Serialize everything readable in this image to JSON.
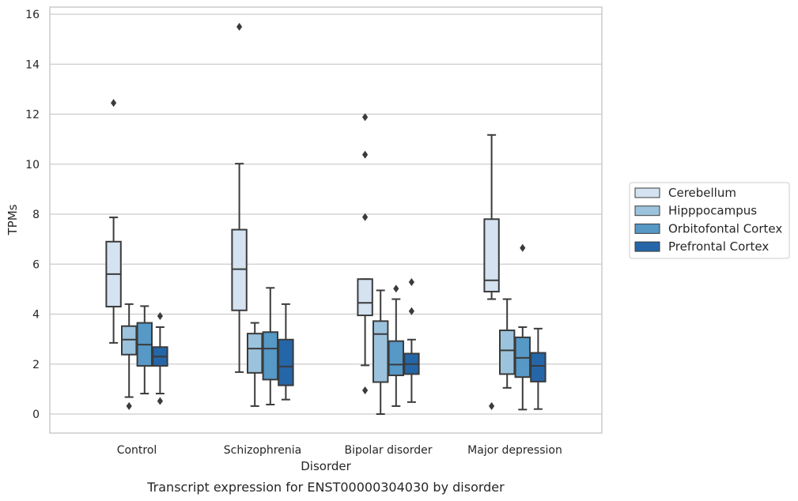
{
  "chart_data": {
    "type": "box",
    "caption": "Transcript expression for ENST00000304030 by disorder",
    "xlabel": "Disorder",
    "ylabel": "TPMs",
    "ylim": [
      -0.75,
      16.3
    ],
    "yticks": [
      0,
      2,
      4,
      6,
      8,
      10,
      12,
      14,
      16
    ],
    "grid": true,
    "legend_position": "right",
    "categories": [
      "Control",
      "Schizophrenia",
      "Bipolar disorder",
      "Major depression"
    ],
    "series": [
      {
        "name": "Cerebellum",
        "color": "#d4e2f1",
        "boxes": [
          {
            "whislo": 2.85,
            "q1": 4.3,
            "med": 5.6,
            "q3": 6.9,
            "whishi": 7.87,
            "fliers": [
              12.45
            ]
          },
          {
            "whislo": 1.68,
            "q1": 4.15,
            "med": 5.8,
            "q3": 7.38,
            "whishi": 10.02,
            "fliers": [
              15.5
            ]
          },
          {
            "whislo": 1.95,
            "q1": 3.95,
            "med": 4.45,
            "q3": 5.4,
            "whishi": 5.4,
            "fliers": [
              7.88,
              10.38,
              11.88,
              0.95
            ]
          },
          {
            "whislo": 4.6,
            "q1": 4.9,
            "med": 5.35,
            "q3": 7.8,
            "whishi": 11.17,
            "fliers": [
              0.32
            ]
          }
        ]
      },
      {
        "name": "Hipppocampus",
        "color": "#9cc3dd",
        "boxes": [
          {
            "whislo": 0.68,
            "q1": 2.38,
            "med": 2.98,
            "q3": 3.52,
            "whishi": 4.4,
            "fliers": [
              0.32
            ]
          },
          {
            "whislo": 0.32,
            "q1": 1.65,
            "med": 2.62,
            "q3": 3.22,
            "whishi": 3.65,
            "fliers": []
          },
          {
            "whislo": 0.0,
            "q1": 1.28,
            "med": 3.2,
            "q3": 3.72,
            "whishi": 4.95,
            "fliers": []
          },
          {
            "whislo": 1.05,
            "q1": 1.6,
            "med": 2.55,
            "q3": 3.35,
            "whishi": 4.6,
            "fliers": []
          }
        ]
      },
      {
        "name": "Orbitofontal Cortex",
        "color": "#5698c6",
        "boxes": [
          {
            "whislo": 0.82,
            "q1": 1.93,
            "med": 2.78,
            "q3": 3.65,
            "whishi": 4.32,
            "fliers": []
          },
          {
            "whislo": 0.38,
            "q1": 1.38,
            "med": 2.62,
            "q3": 3.28,
            "whishi": 5.05,
            "fliers": []
          },
          {
            "whislo": 0.32,
            "q1": 1.55,
            "med": 1.98,
            "q3": 2.92,
            "whishi": 4.6,
            "fliers": [
              5.02
            ]
          },
          {
            "whislo": 0.18,
            "q1": 1.48,
            "med": 2.25,
            "q3": 3.07,
            "whishi": 3.48,
            "fliers": [
              6.65
            ]
          }
        ]
      },
      {
        "name": "Prefrontal Cortex",
        "color": "#2566a8",
        "boxes": [
          {
            "whislo": 0.82,
            "q1": 1.93,
            "med": 2.3,
            "q3": 2.68,
            "whishi": 3.48,
            "fliers": [
              3.92,
              0.52
            ]
          },
          {
            "whislo": 0.58,
            "q1": 1.15,
            "med": 1.9,
            "q3": 2.98,
            "whishi": 4.4,
            "fliers": []
          },
          {
            "whislo": 0.48,
            "q1": 1.6,
            "med": 2.0,
            "q3": 2.42,
            "whishi": 2.98,
            "fliers": [
              4.12,
              5.28
            ]
          },
          {
            "whislo": 0.2,
            "q1": 1.3,
            "med": 1.93,
            "q3": 2.45,
            "whishi": 3.42,
            "fliers": []
          }
        ]
      }
    ]
  }
}
